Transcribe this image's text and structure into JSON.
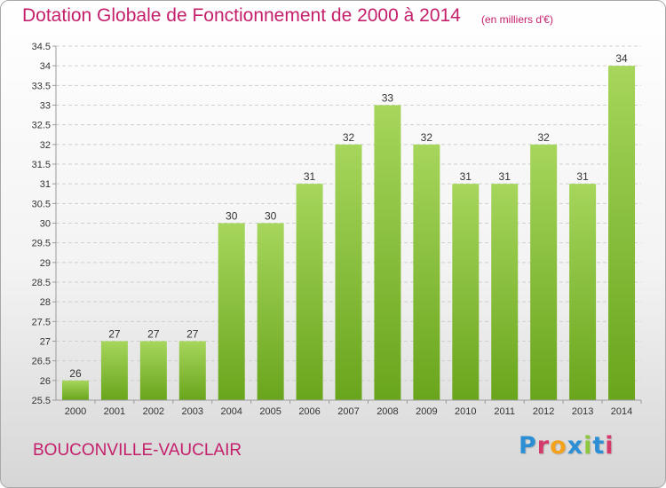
{
  "header": {
    "title": "Dotation Globale de Fonctionnement de 2000 à 2014",
    "unit_note": "(en milliers d'€)"
  },
  "footer": {
    "commune": "BOUCONVILLE-VAUCLAIR",
    "logo_letters": [
      "P",
      "r",
      "o",
      "x",
      "i",
      "t",
      "i"
    ],
    "logo_colors": [
      "#2c8fd6",
      "#d43a6a",
      "#f4a21e",
      "#2c8fd6",
      "#8dc63f",
      "#2c8fd6",
      "#d43a6a"
    ]
  },
  "colors": {
    "title": "#c41f6b",
    "bar_light": "#a6d65c",
    "bar_dark": "#69a51c",
    "grid": "#cfcfcf",
    "axis": "#9a9a9a",
    "tick_label": "#333333"
  },
  "chart_data": {
    "type": "bar",
    "title": "Dotation Globale de Fonctionnement de 2000 à 2014",
    "subtitle": "(en milliers d'€)",
    "xlabel": "",
    "ylabel": "",
    "categories": [
      "2000",
      "2001",
      "2002",
      "2003",
      "2004",
      "2005",
      "2006",
      "2007",
      "2008",
      "2009",
      "2010",
      "2011",
      "2012",
      "2013",
      "2014"
    ],
    "values": [
      26,
      27,
      27,
      27,
      30,
      30,
      31,
      32,
      33,
      32,
      31,
      31,
      32,
      31,
      34
    ],
    "labels": [
      "26",
      "27",
      "27",
      "27",
      "30",
      "30",
      "31",
      "32",
      "33",
      "32",
      "31",
      "31",
      "32",
      "31",
      "34"
    ],
    "ylim": [
      25.5,
      34.5
    ],
    "yticks": [
      25.5,
      26,
      26.5,
      27,
      27.5,
      28,
      28.5,
      29,
      29.5,
      30,
      30.5,
      31,
      31.5,
      32,
      32.5,
      33,
      33.5,
      34,
      34.5
    ],
    "ytick_labels": [
      "25.5",
      "26",
      "26.5",
      "27",
      "27.5",
      "28",
      "28.5",
      "29",
      "29.5",
      "30",
      "30.5",
      "31",
      "31.5",
      "32",
      "32.5",
      "33",
      "33.5",
      "34",
      "34.5"
    ],
    "grid": "horizontal dashed"
  }
}
